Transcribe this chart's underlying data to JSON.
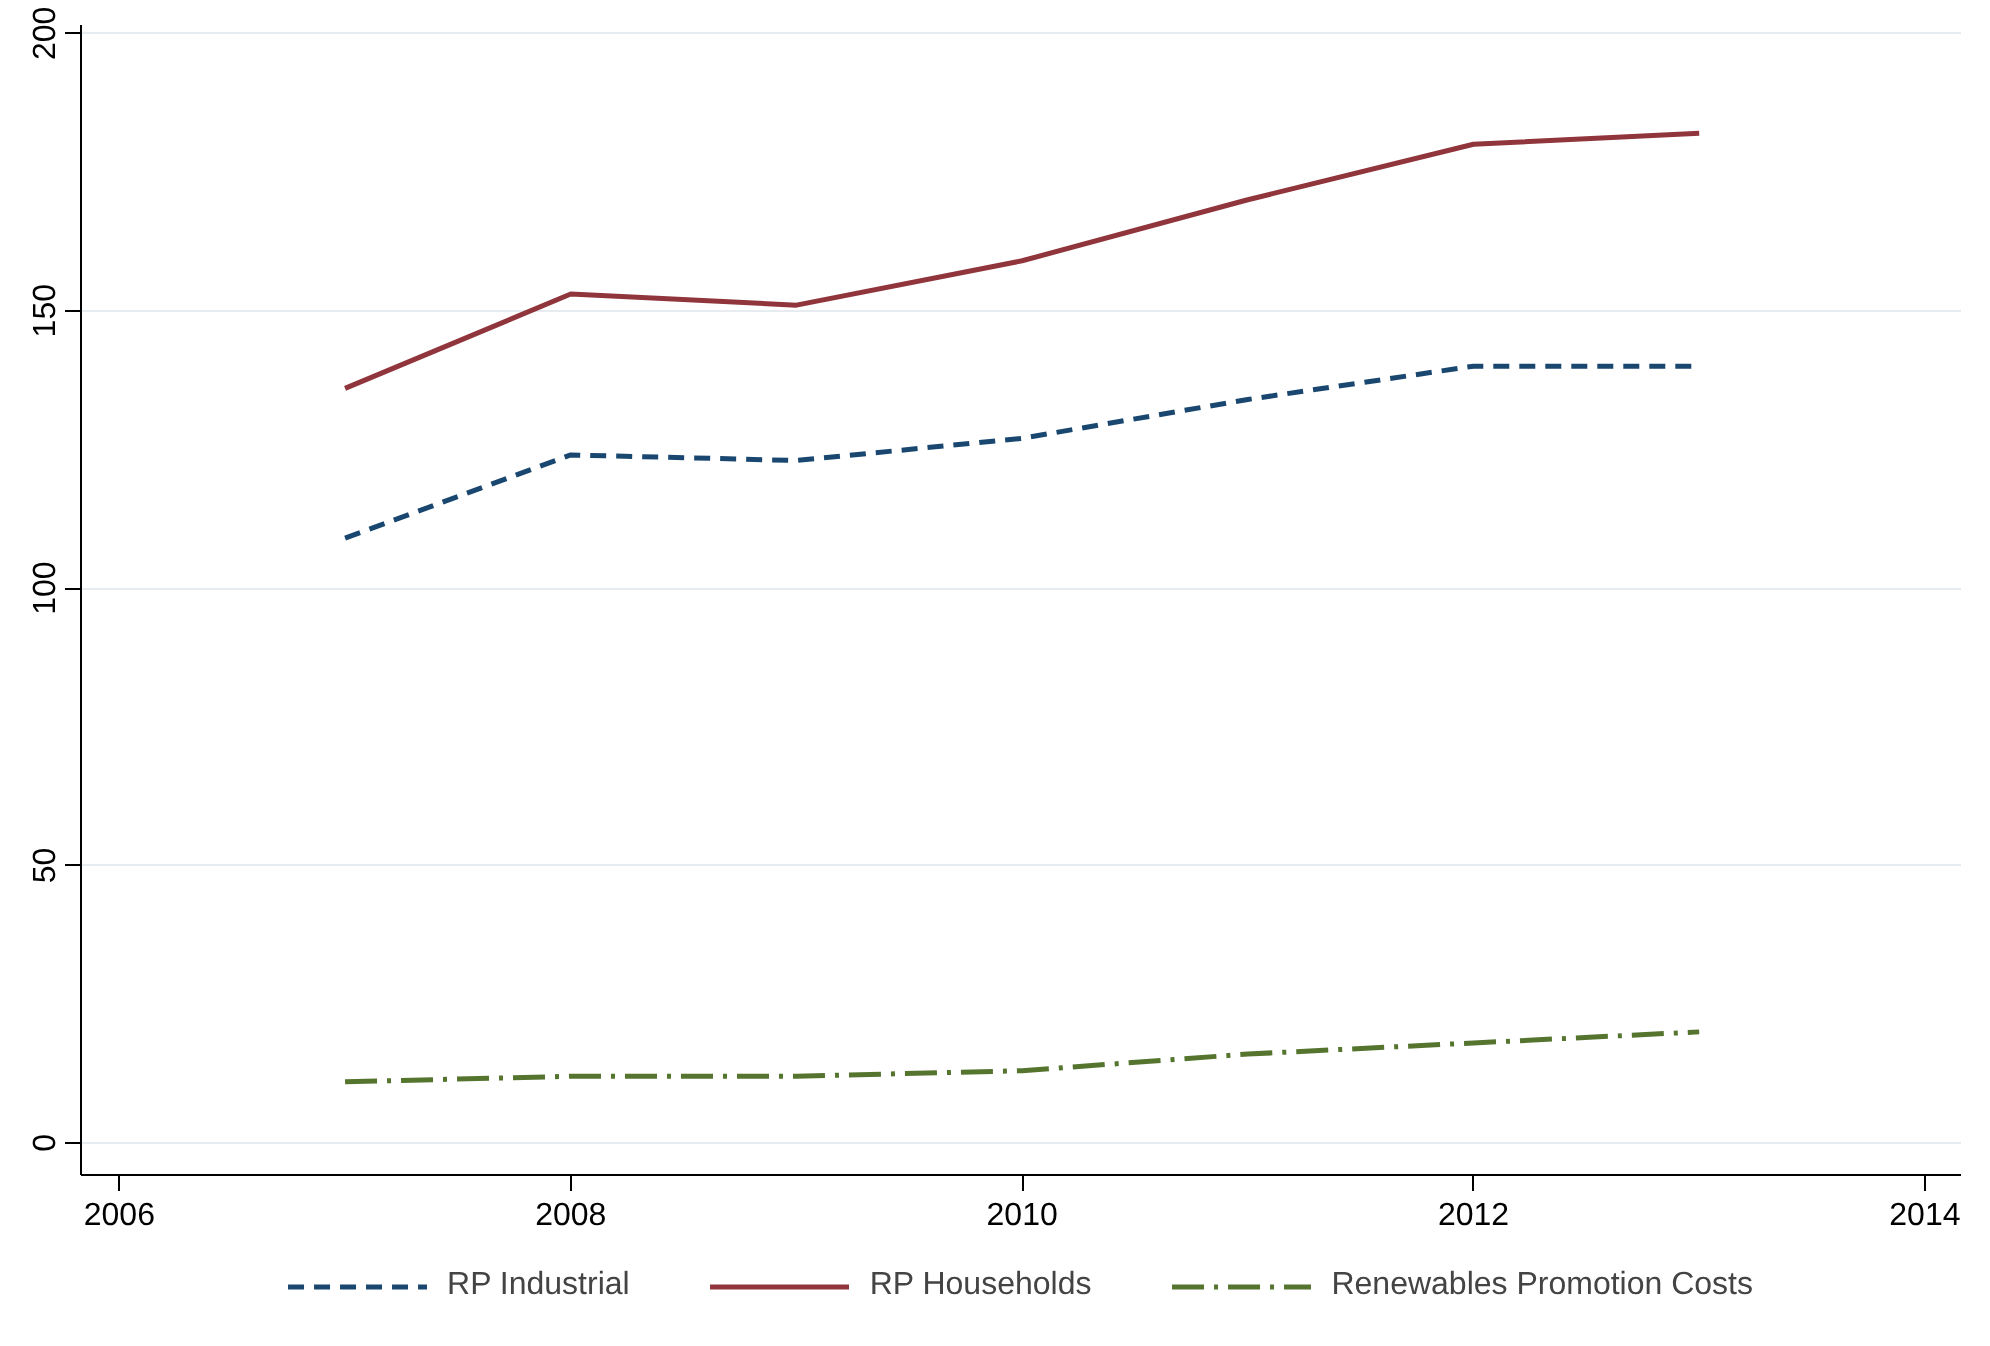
{
  "chart_data": {
    "type": "line",
    "x": [
      2007,
      2008,
      2009,
      2010,
      2011,
      2012,
      2013
    ],
    "series": [
      {
        "name": "RP Industrial",
        "color": "#1a476f",
        "line_style": "dashed",
        "values": [
          109,
          124,
          123,
          127,
          134,
          140,
          140
        ]
      },
      {
        "name": "RP Households",
        "color": "#90353b",
        "line_style": "solid",
        "values": [
          136,
          153,
          151,
          159,
          170,
          180,
          182
        ]
      },
      {
        "name": "Renewables Promotion Costs",
        "color": "#55752f",
        "line_style": "dashdot",
        "values": [
          11,
          12,
          12,
          13,
          16,
          18,
          20
        ]
      }
    ],
    "xlim": [
      2005.83,
      2014.16
    ],
    "ylim": [
      -5.8,
      201.5
    ],
    "xticks": [
      2006,
      2008,
      2010,
      2012,
      2014
    ],
    "yticks": [
      0,
      50,
      100,
      150,
      200
    ],
    "grid": "y",
    "legend": "bottom",
    "marker": "none"
  }
}
